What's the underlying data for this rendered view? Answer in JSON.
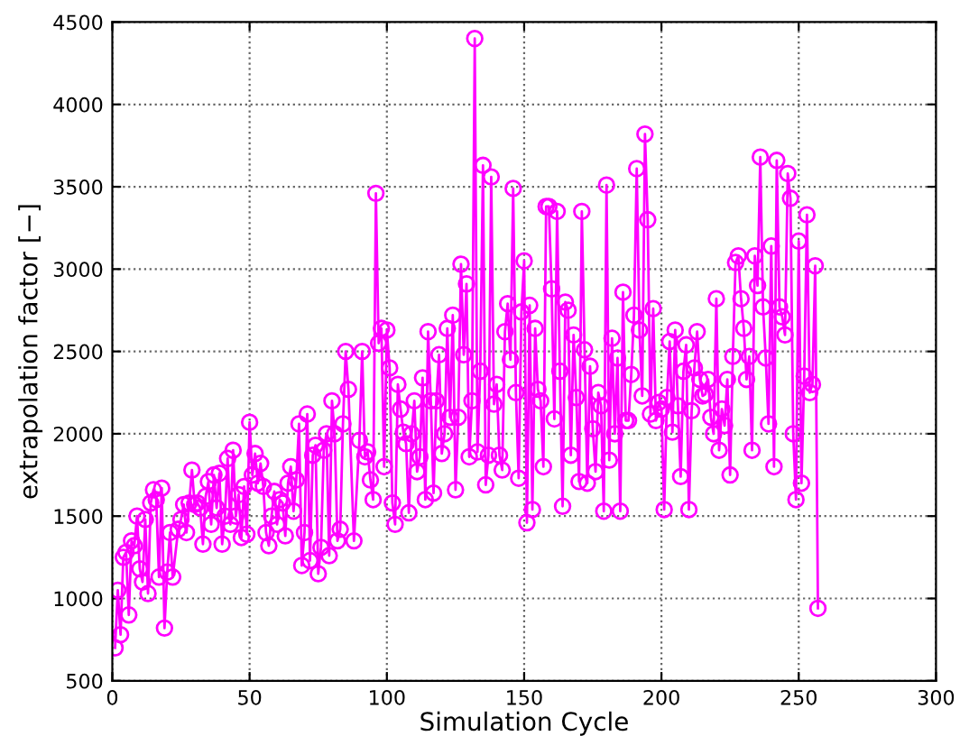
{
  "chart_data": {
    "type": "line",
    "xlabel": "Simulation Cycle",
    "ylabel": "extrapolation factor [−]",
    "xlim": [
      0,
      300
    ],
    "xticks": [
      0,
      50,
      100,
      150,
      200,
      250,
      300
    ],
    "ylim": [
      500,
      4500
    ],
    "yticks": [
      500,
      1000,
      1500,
      2000,
      2500,
      3000,
      3500,
      4000,
      4500
    ],
    "grid": true,
    "marker": "circle",
    "line_style": "solid",
    "series": [
      {
        "color": "#ff00ff",
        "x": [
          1,
          2,
          3,
          4,
          5,
          6,
          7,
          8,
          9,
          10,
          11,
          12,
          13,
          14,
          15,
          16,
          17,
          18,
          19,
          20,
          21,
          22,
          24,
          25,
          26,
          27,
          28,
          29,
          30,
          31,
          32,
          33,
          34,
          35,
          36,
          37,
          38,
          39,
          40,
          41,
          42,
          43,
          44,
          45,
          46,
          47,
          48,
          49,
          50,
          51,
          52,
          53,
          54,
          55,
          56,
          57,
          58,
          59,
          60,
          61,
          62,
          63,
          64,
          65,
          66,
          67,
          68,
          69,
          70,
          71,
          72,
          73,
          74,
          75,
          76,
          77,
          78,
          79,
          80,
          81,
          82,
          83,
          84,
          85,
          86,
          88,
          90,
          91,
          92,
          93,
          94,
          95,
          96,
          97,
          98,
          99,
          100,
          101,
          102,
          103,
          104,
          105,
          106,
          107,
          108,
          109,
          110,
          111,
          112,
          113,
          114,
          115,
          116,
          117,
          118,
          119,
          120,
          121,
          122,
          123,
          124,
          125,
          126,
          127,
          128,
          129,
          130,
          131,
          132,
          133,
          134,
          135,
          136,
          137,
          138,
          139,
          140,
          141,
          142,
          143,
          144,
          145,
          146,
          147,
          148,
          149,
          150,
          151,
          152,
          153,
          154,
          155,
          156,
          157,
          158,
          159,
          160,
          161,
          162,
          163,
          164,
          165,
          166,
          167,
          168,
          169,
          170,
          171,
          172,
          173,
          174,
          175,
          176,
          177,
          178,
          179,
          180,
          181,
          182,
          183,
          184,
          185,
          186,
          187,
          188,
          189,
          190,
          191,
          192,
          193,
          194,
          195,
          196,
          197,
          198,
          199,
          200,
          201,
          202,
          203,
          204,
          205,
          206,
          207,
          208,
          209,
          210,
          211,
          212,
          213,
          214,
          215,
          216,
          217,
          218,
          219,
          220,
          221,
          222,
          223,
          224,
          225,
          226,
          227,
          228,
          229,
          230,
          231,
          232,
          233,
          234,
          235,
          236,
          237,
          238,
          239,
          240,
          241,
          242,
          243,
          244,
          245,
          246,
          247,
          248,
          249,
          250,
          251,
          252,
          253,
          254,
          255,
          256,
          257
        ],
        "values": [
          700,
          1050,
          780,
          1250,
          1280,
          900,
          1350,
          1320,
          1500,
          1180,
          1100,
          1480,
          1030,
          1580,
          1660,
          1600,
          1130,
          1670,
          820,
          1160,
          1400,
          1130,
          1420,
          1480,
          1570,
          1400,
          1580,
          1780,
          1570,
          1580,
          1550,
          1330,
          1620,
          1710,
          1450,
          1750,
          1550,
          1760,
          1330,
          1500,
          1850,
          1450,
          1900,
          1500,
          1630,
          1370,
          1680,
          1390,
          2070,
          1750,
          1880,
          1700,
          1820,
          1680,
          1400,
          1320,
          1500,
          1650,
          1450,
          1600,
          1580,
          1380,
          1700,
          1800,
          1530,
          1720,
          2060,
          1200,
          1400,
          2120,
          1230,
          1870,
          1930,
          1150,
          1310,
          1900,
          2000,
          1260,
          2200,
          2000,
          1350,
          1420,
          2060,
          2500,
          2270,
          1350,
          1960,
          2500,
          1860,
          1890,
          1720,
          1600,
          3460,
          2550,
          2640,
          1800,
          2630,
          2400,
          1580,
          1450,
          2300,
          2150,
          2010,
          1940,
          1520,
          2000,
          2200,
          1770,
          1860,
          2340,
          1600,
          2620,
          2200,
          1640,
          2200,
          2480,
          1880,
          2000,
          2640,
          2100,
          2720,
          1660,
          2100,
          3030,
          2480,
          2910,
          1860,
          2200,
          4400,
          1890,
          2380,
          3630,
          1690,
          1870,
          3560,
          2180,
          2300,
          1870,
          1780,
          2620,
          2790,
          2450,
          3490,
          2250,
          1730,
          2740,
          3050,
          1460,
          2780,
          1540,
          2640,
          2270,
          2200,
          1800,
          3380,
          3380,
          2880,
          2090,
          3350,
          2380,
          1560,
          2800,
          2750,
          1870,
          2600,
          2220,
          1710,
          3350,
          2510,
          1700,
          2410,
          2030,
          1770,
          2250,
          2170,
          1530,
          3510,
          1840,
          2580,
          2000,
          2460,
          1530,
          2860,
          2080,
          2080,
          2360,
          2720,
          3610,
          2630,
          2230,
          3820,
          3300,
          2120,
          2760,
          2080,
          2190,
          2150,
          1540,
          2220,
          2560,
          2010,
          2630,
          2170,
          1740,
          2380,
          2540,
          1540,
          2140,
          2400,
          2620,
          2330,
          2230,
          2240,
          2330,
          2100,
          2000,
          2820,
          1900,
          2150,
          2050,
          2330,
          1750,
          2470,
          3040,
          3080,
          2820,
          2640,
          2330,
          2470,
          1900,
          3080,
          2900,
          3680,
          2770,
          2460,
          2060,
          3140,
          1800,
          3660,
          2770,
          2710,
          2600,
          3580,
          3430,
          2000,
          1600,
          3170,
          1700,
          2350,
          3330,
          2250,
          2300,
          3020,
          940
        ]
      }
    ]
  }
}
